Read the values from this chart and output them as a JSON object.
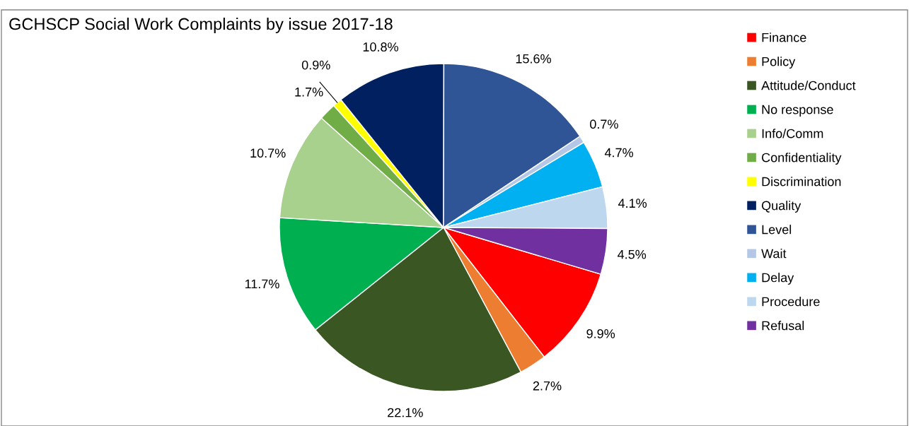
{
  "chart_data": {
    "type": "pie",
    "title": "GCHSCP Social Work Complaints by issue 2017-18",
    "categories": [
      "Finance",
      "Policy",
      "Attitude/Conduct",
      "No response",
      "Info/Comm",
      "Confidentiality",
      "Discrimination",
      "Quality",
      "Level",
      "Wait",
      "Delay",
      "Procedure",
      "Refusal"
    ],
    "values": [
      9.9,
      2.7,
      22.1,
      11.7,
      10.7,
      1.7,
      0.9,
      10.8,
      15.6,
      0.7,
      4.7,
      4.1,
      4.5
    ],
    "value_labels": [
      "9.9%",
      "2.7%",
      "22.1%",
      "11.7%",
      "10.7%",
      "1.7%",
      "0.9%",
      "10.8%",
      "15.6%",
      "0.7%",
      "4.7%",
      "4.1%",
      "4.5%"
    ],
    "colors": [
      "#ff0000",
      "#ed7d31",
      "#3a5623",
      "#00b050",
      "#a9d18e",
      "#70ad47",
      "#ffff00",
      "#002060",
      "#2f5597",
      "#b4c7e7",
      "#00b0f0",
      "#bdd7ee",
      "#7030a0"
    ],
    "legend": "right"
  }
}
